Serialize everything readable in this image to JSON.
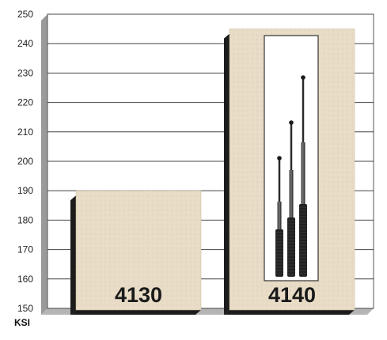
{
  "chart_data": {
    "type": "bar",
    "categories": [
      "4130",
      "4140"
    ],
    "values": [
      190,
      245
    ],
    "ylim": [
      150,
      250
    ],
    "yticks": [
      150,
      160,
      170,
      180,
      190,
      200,
      210,
      220,
      230,
      240,
      250
    ],
    "ylabel": "KSI",
    "xlabel": "",
    "title": "",
    "grid": true,
    "colors": {
      "bar_fill": "#e8dcc6",
      "bar_shadow": "#1c1c1c",
      "grid": "#444444",
      "wall": "#9a9a9a"
    },
    "bar_image": {
      "bar": "4140",
      "subject": "three telescopic batons"
    }
  }
}
